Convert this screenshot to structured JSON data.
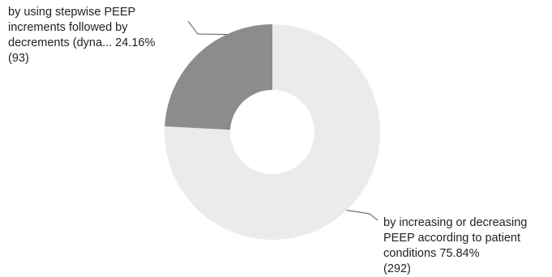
{
  "chart_data": {
    "type": "pie",
    "donut": true,
    "start_angle_deg": 0,
    "direction": "clockwise",
    "slices": [
      {
        "label_lines": [
          "by increasing or decreasing",
          "PEEP according to patient",
          "conditions 75.84%",
          "(292)"
        ],
        "percent": 75.84,
        "count": 292,
        "color": "#ebebeb"
      },
      {
        "label_lines": [
          "by using stepwise PEEP",
          "increments followed by",
          "decrements (dyna... 24.16%",
          "(93)"
        ],
        "percent": 24.16,
        "count": 93,
        "color": "#8c8c8c"
      }
    ],
    "leader_color": "#555555"
  }
}
